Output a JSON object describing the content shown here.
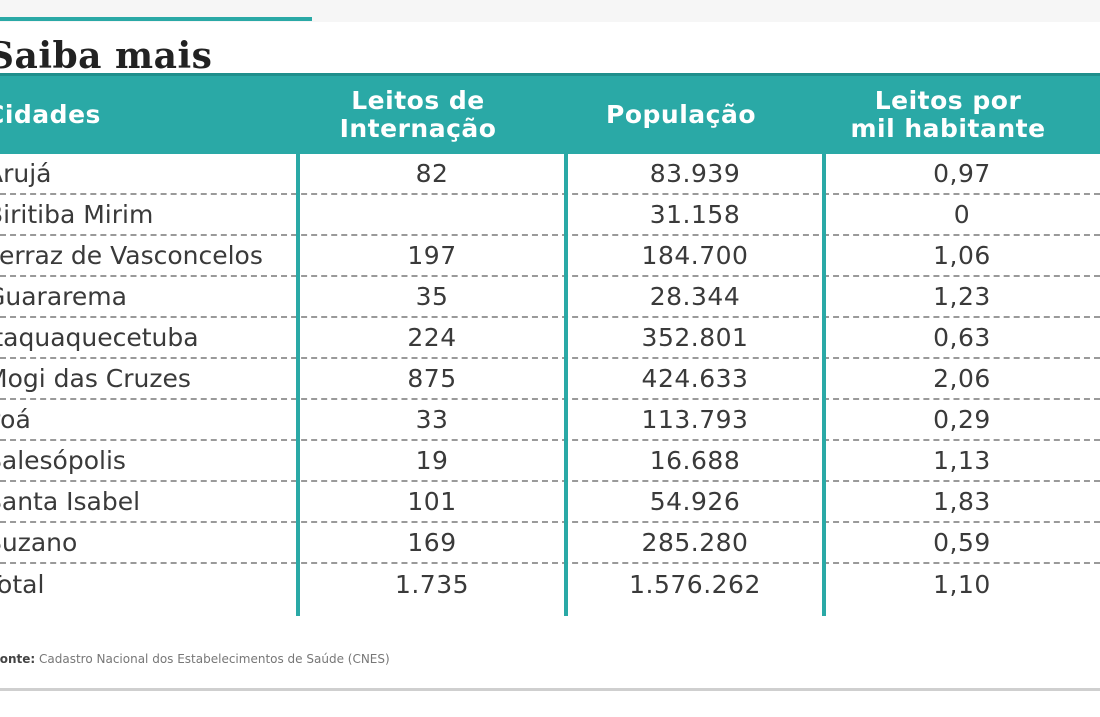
{
  "title": "Saiba mais",
  "table": {
    "headers": [
      "Cidades",
      "Leitos de\nInternação",
      "População",
      "Leitos por\nmil habitante"
    ],
    "rows": [
      [
        "Arujá",
        "82",
        "83.939",
        "0,97"
      ],
      [
        "Biritiba Mirim",
        "",
        "31.158",
        "0"
      ],
      [
        "Ferraz de Vasconcelos",
        "197",
        "184.700",
        "1,06"
      ],
      [
        "Guararema",
        "35",
        "28.344",
        "1,23"
      ],
      [
        "Itaquaquecetuba",
        "224",
        "352.801",
        "0,63"
      ],
      [
        "Mogi das Cruzes",
        "875",
        "424.633",
        "2,06"
      ],
      [
        "Poá",
        "33",
        "113.793",
        "0,29"
      ],
      [
        "Salesópolis",
        "19",
        "16.688",
        "1,13"
      ],
      [
        "Santa Isabel",
        "101",
        "54.926",
        "1,83"
      ],
      [
        "Suzano",
        "169",
        "285.280",
        "0,59"
      ],
      [
        "Total",
        "1.735",
        "1.576.262",
        "1,10"
      ]
    ]
  },
  "source": {
    "label": "Fonte:",
    "text": "Cadastro Nacional dos Estabelecimentos de Saúde (CNES)"
  },
  "colors": {
    "accent": "#2aa9a6",
    "divider": "#9a9a9a"
  }
}
